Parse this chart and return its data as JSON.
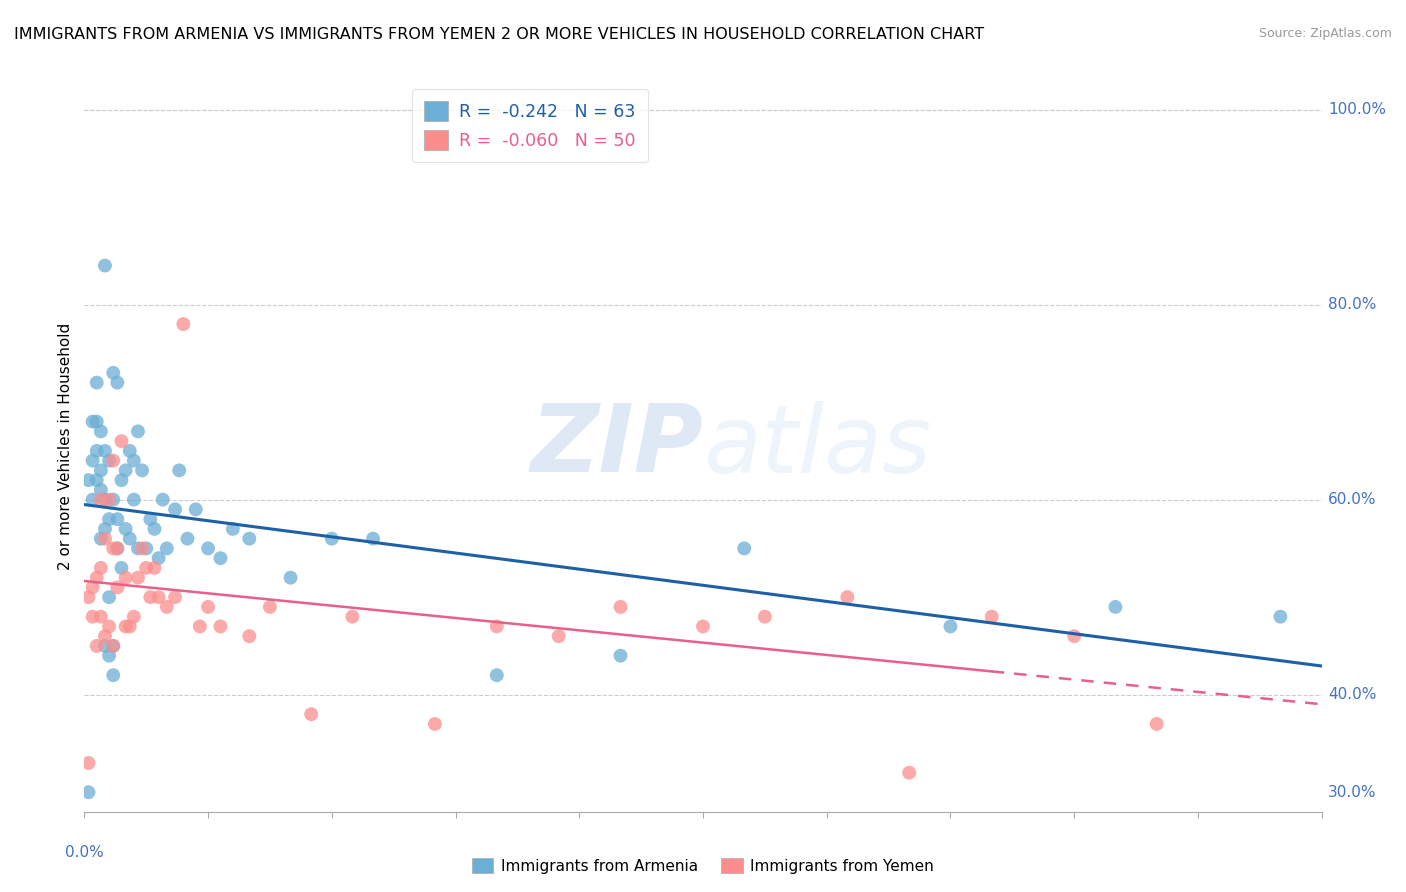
{
  "title": "IMMIGRANTS FROM ARMENIA VS IMMIGRANTS FROM YEMEN 2 OR MORE VEHICLES IN HOUSEHOLD CORRELATION CHART",
  "source": "Source: ZipAtlas.com",
  "ylabel": "2 or more Vehicles in Household",
  "xmin": 0.0,
  "xmax": 0.3,
  "ymin": 0.28,
  "ymax": 1.03,
  "armenia_R": -0.242,
  "armenia_N": 63,
  "yemen_R": -0.06,
  "yemen_N": 50,
  "armenia_color": "#6baed6",
  "yemen_color": "#fc8d8d",
  "armenia_line_color": "#1f5fa6",
  "yemen_line_color": "#e8608a",
  "watermark_zip": "ZIP",
  "watermark_atlas": "atlas",
  "right_yticks": [
    1.0,
    0.8,
    0.6,
    0.4
  ],
  "right_ytick_labels": [
    "100.0%",
    "80.0%",
    "60.0%",
    "40.0%"
  ],
  "top_gridline_y": 1.0,
  "armenia_x": [
    0.001,
    0.001,
    0.002,
    0.002,
    0.002,
    0.003,
    0.003,
    0.003,
    0.003,
    0.004,
    0.004,
    0.004,
    0.004,
    0.005,
    0.005,
    0.005,
    0.005,
    0.005,
    0.006,
    0.006,
    0.006,
    0.006,
    0.007,
    0.007,
    0.007,
    0.007,
    0.008,
    0.008,
    0.008,
    0.009,
    0.009,
    0.01,
    0.01,
    0.011,
    0.011,
    0.012,
    0.012,
    0.013,
    0.013,
    0.014,
    0.015,
    0.016,
    0.017,
    0.018,
    0.019,
    0.02,
    0.022,
    0.023,
    0.025,
    0.027,
    0.03,
    0.033,
    0.036,
    0.04,
    0.05,
    0.06,
    0.07,
    0.1,
    0.13,
    0.16,
    0.21,
    0.25,
    0.29
  ],
  "armenia_y": [
    0.3,
    0.62,
    0.6,
    0.64,
    0.68,
    0.62,
    0.65,
    0.68,
    0.72,
    0.56,
    0.61,
    0.63,
    0.67,
    0.45,
    0.57,
    0.6,
    0.65,
    0.84,
    0.44,
    0.5,
    0.58,
    0.64,
    0.42,
    0.45,
    0.6,
    0.73,
    0.55,
    0.58,
    0.72,
    0.53,
    0.62,
    0.57,
    0.63,
    0.56,
    0.65,
    0.6,
    0.64,
    0.55,
    0.67,
    0.63,
    0.55,
    0.58,
    0.57,
    0.54,
    0.6,
    0.55,
    0.59,
    0.63,
    0.56,
    0.59,
    0.55,
    0.54,
    0.57,
    0.56,
    0.52,
    0.56,
    0.56,
    0.42,
    0.44,
    0.55,
    0.47,
    0.49,
    0.48
  ],
  "yemen_x": [
    0.001,
    0.001,
    0.002,
    0.002,
    0.003,
    0.003,
    0.004,
    0.004,
    0.004,
    0.005,
    0.005,
    0.006,
    0.006,
    0.007,
    0.007,
    0.007,
    0.008,
    0.008,
    0.009,
    0.01,
    0.01,
    0.011,
    0.012,
    0.013,
    0.014,
    0.015,
    0.016,
    0.017,
    0.018,
    0.02,
    0.022,
    0.024,
    0.028,
    0.03,
    0.033,
    0.04,
    0.045,
    0.055,
    0.065,
    0.085,
    0.1,
    0.115,
    0.13,
    0.15,
    0.165,
    0.185,
    0.2,
    0.22,
    0.24,
    0.26
  ],
  "yemen_y": [
    0.5,
    0.33,
    0.48,
    0.51,
    0.45,
    0.52,
    0.48,
    0.53,
    0.6,
    0.46,
    0.56,
    0.47,
    0.6,
    0.45,
    0.55,
    0.64,
    0.51,
    0.55,
    0.66,
    0.47,
    0.52,
    0.47,
    0.48,
    0.52,
    0.55,
    0.53,
    0.5,
    0.53,
    0.5,
    0.49,
    0.5,
    0.78,
    0.47,
    0.49,
    0.47,
    0.46,
    0.49,
    0.38,
    0.48,
    0.37,
    0.47,
    0.46,
    0.49,
    0.47,
    0.48,
    0.5,
    0.32,
    0.48,
    0.46,
    0.37
  ]
}
